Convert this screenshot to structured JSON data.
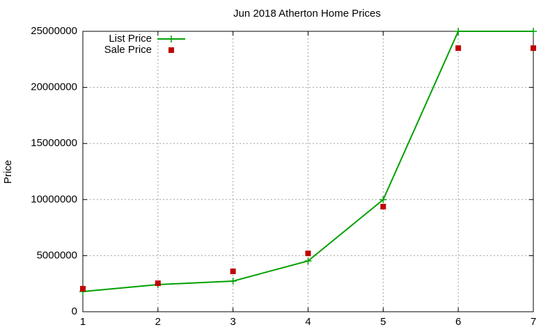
{
  "chart_data": {
    "type": "line",
    "title": "Jun 2018 Atherton Home Prices",
    "y_label": "Price",
    "x": [
      1,
      2,
      3,
      4,
      5,
      6,
      7
    ],
    "series": [
      {
        "name": "List Price",
        "color": "#00a000",
        "style": "line-points",
        "values": [
          1800000,
          2420000,
          2730000,
          4530000,
          9990000,
          25000000,
          25000000
        ]
      },
      {
        "name": "Sale Price",
        "color": "#c00000",
        "style": "points",
        "values": [
          2050000,
          2540000,
          3600000,
          5200000,
          9370000,
          23500000,
          23500000
        ]
      }
    ],
    "xlim": [
      1,
      7
    ],
    "xticks": [
      1,
      2,
      3,
      4,
      5,
      6,
      7
    ],
    "ylim": [
      0,
      25000000
    ],
    "yticks": [
      0,
      5000000,
      10000000,
      15000000,
      20000000,
      25000000
    ],
    "grid": true,
    "legend": "top-left"
  }
}
